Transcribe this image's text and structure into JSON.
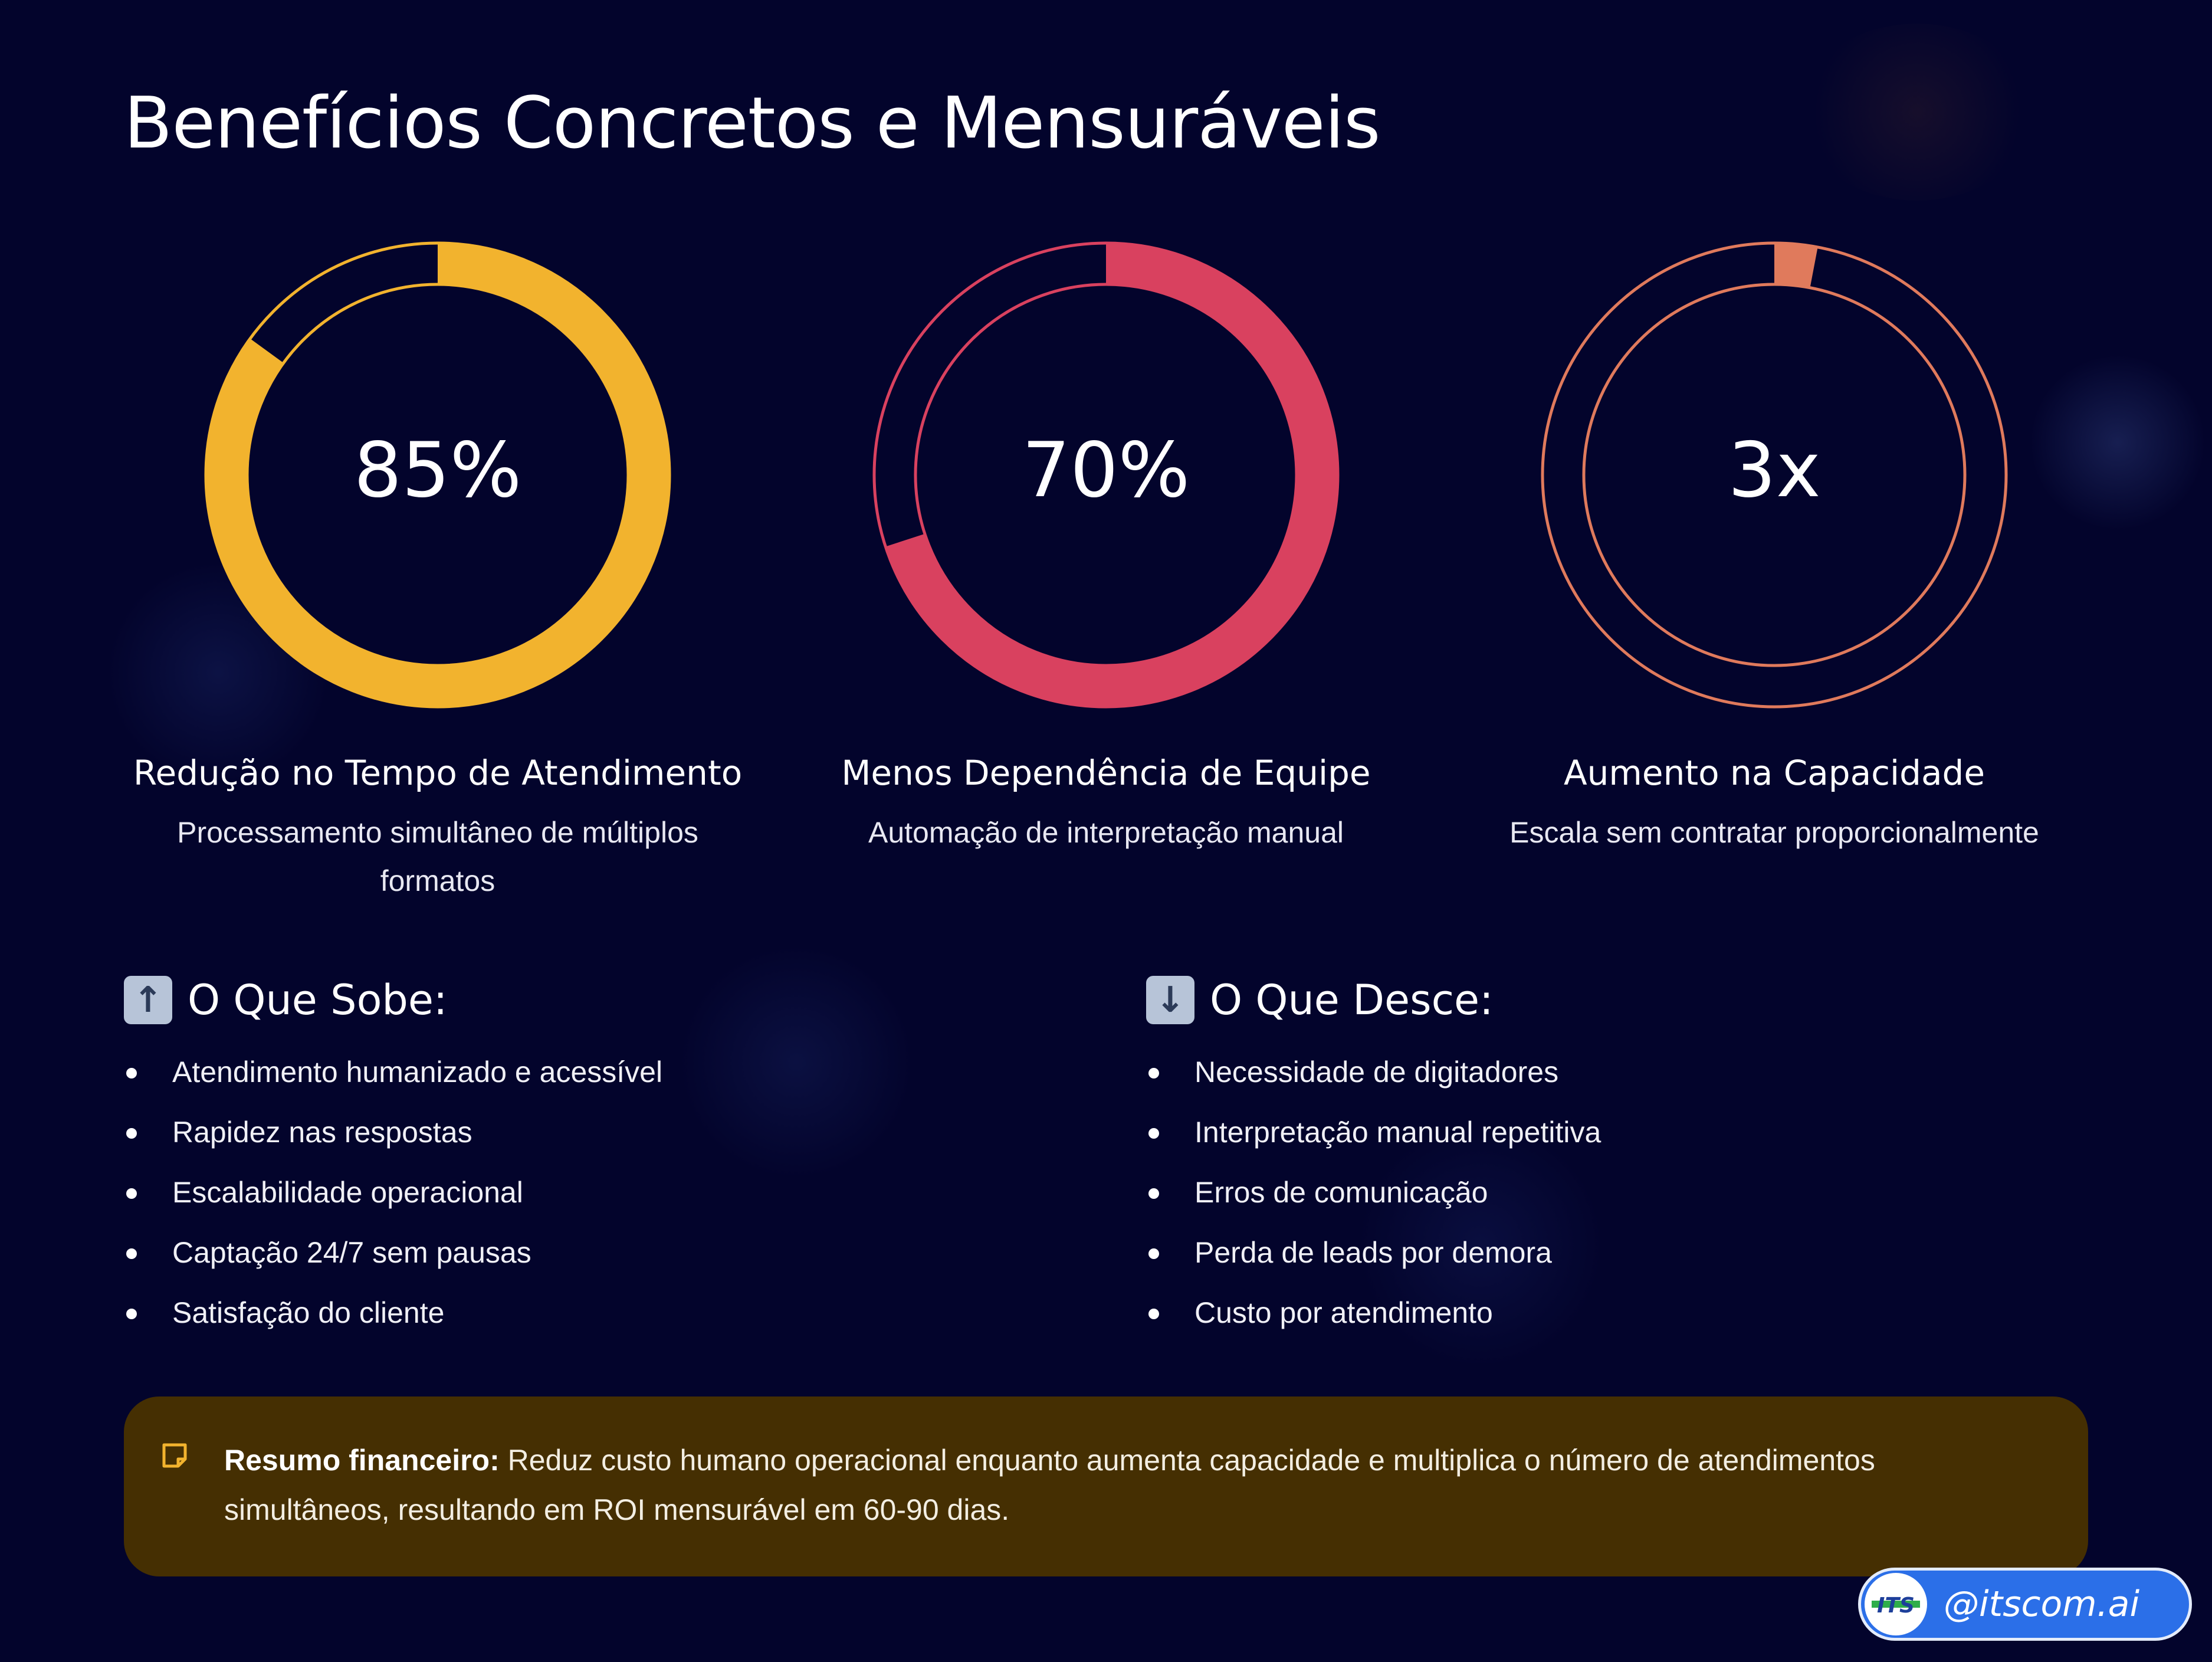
{
  "title": "Benefícios Concretos e Mensuráveis",
  "metrics": [
    {
      "value": "85%",
      "fill_fraction": 0.85,
      "color": "#f2b32e",
      "label": "Redução no Tempo de Atendimento",
      "description": "Processamento simultâneo de múltiplos formatos"
    },
    {
      "value": "70%",
      "fill_fraction": 0.7,
      "color": "#d9415f",
      "label": "Menos Dependência de Equipe",
      "description": "Automação de interpretação manual"
    },
    {
      "value": "3x",
      "fill_fraction": 0.03,
      "color": "#e07a5c",
      "label": "Aumento na Capacidade",
      "description": "Escala sem contratar proporcionalmente"
    }
  ],
  "up_list": {
    "icon": "arrow-up-icon",
    "heading": "O Que Sobe:",
    "items": [
      "Atendimento humanizado e acessível",
      "Rapidez nas respostas",
      "Escalabilidade operacional",
      "Captação 24/7 sem pausas",
      "Satisfação do cliente"
    ]
  },
  "down_list": {
    "icon": "arrow-down-icon",
    "heading": "O Que Desce:",
    "items": [
      "Necessidade de digitadores",
      "Interpretação manual repetitiva",
      "Erros de comunicação",
      "Perda de leads por demora",
      "Custo por atendimento"
    ]
  },
  "summary": {
    "icon": "note-icon",
    "label": "Resumo financeiro:",
    "text": " Reduz custo humano operacional enquanto aumenta capacidade e multiplica o número de atendimentos simultâneos, resultando em ROI mensurável em 60-90 dias."
  },
  "badge": {
    "handle": "@itscom.ai",
    "logo_text": "ITS"
  },
  "colors": {
    "background": "#03042c",
    "summary_bg": "#452f02",
    "badge_bg": "#2b6fe8"
  }
}
